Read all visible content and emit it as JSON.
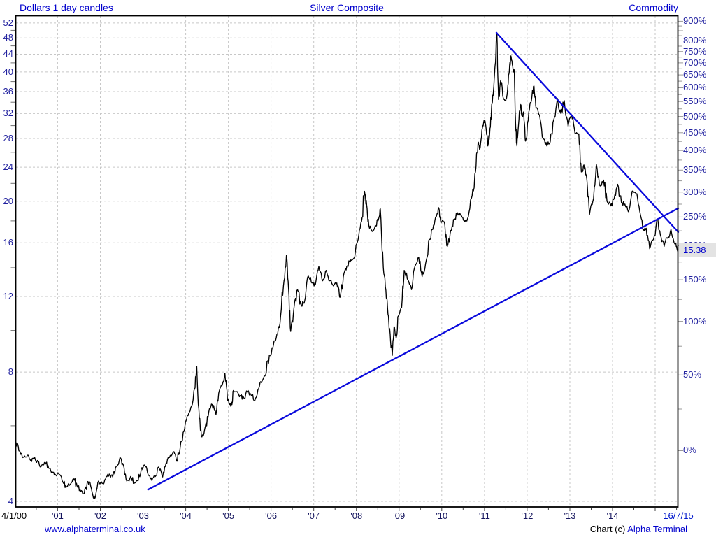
{
  "header": {
    "left": "Dollars 1 day candles",
    "center": "Silver Composite",
    "right": "Commodity"
  },
  "footer": {
    "site": "www.alphaterminal.co.uk",
    "credit_prefix": "Chart (c) ",
    "credit_brand": "Alpha Terminal"
  },
  "colors": {
    "grid": "#c7c7c7",
    "border": "#000000",
    "price_line": "#000000",
    "trendline": "#0a0adc",
    "title_text": "#0000cd",
    "axis_text": "#1f1f9e",
    "x_axis_text": "#15155e",
    "first_date_text": "#000000",
    "last_date_text": "#0018cc",
    "badge_bg": "#e3e3e3",
    "badge_text": "#0000cd",
    "left_tick": "#707070",
    "right_tick": "#9a9a9a",
    "x_tick": "#444444"
  },
  "chart_data": {
    "type": "line",
    "title": "Silver Composite",
    "category": "Commodity",
    "unit": "Dollars",
    "interval": "1 day candles",
    "grid": true,
    "legend": false,
    "last_price": 15.38,
    "last_price_label": "15.38",
    "left_axis": {
      "scale": "log",
      "range": [
        3.882,
        54.17
      ],
      "labels": [
        4,
        8,
        12,
        16,
        20,
        24,
        28,
        32,
        36,
        40,
        44,
        48,
        52
      ],
      "minor_ticks": [
        6,
        10,
        14,
        18,
        22,
        26,
        30,
        34,
        38,
        42,
        46,
        50
      ]
    },
    "right_axis": {
      "scale": "log-percent-change",
      "base_price": 5.25,
      "label_pcts": [
        900,
        800,
        750,
        700,
        650,
        600,
        550,
        500,
        450,
        400,
        350,
        300,
        250,
        200,
        150,
        100,
        50,
        0
      ],
      "tick_step_pct": 25,
      "tick_max_pct": 900
    },
    "x_axis": {
      "start": 2000.01,
      "end": 2015.54,
      "first_label": "4/1/00",
      "years": [
        2001,
        2002,
        2003,
        2004,
        2005,
        2006,
        2007,
        2008,
        2009,
        2010,
        2011,
        2012,
        2013,
        2014
      ],
      "year_labels": [
        "'01",
        "'02",
        "'03",
        "'04",
        "'05",
        "'06",
        "'07",
        "'08",
        "'09",
        "'10",
        "'11",
        "'12",
        "'13",
        "'14"
      ],
      "gridline_years": [
        2001,
        2002,
        2003,
        2004,
        2005,
        2006,
        2007,
        2008,
        2009,
        2010,
        2011,
        2012,
        2013,
        2014,
        2015
      ],
      "last_label": "16/7/15",
      "minor_tick_interval_years": 0.5
    },
    "trendlines": [
      {
        "name": "rising-support",
        "from_t": 2003.12,
        "from_price": 4.26,
        "to_t": 2015.54,
        "to_price": 19.25
      },
      {
        "name": "falling-resistance",
        "from_t": 2011.28,
        "from_price": 49.35,
        "to_t": 2015.54,
        "to_price": 16.95
      }
    ],
    "series": {
      "name": "Silver Composite",
      "points": [
        [
          2000.01,
          5.3
        ],
        [
          2000.05,
          5.48
        ],
        [
          2000.12,
          5.22
        ],
        [
          2000.21,
          5.06
        ],
        [
          2000.29,
          5.12
        ],
        [
          2000.37,
          4.97
        ],
        [
          2000.46,
          5.07
        ],
        [
          2000.54,
          4.95
        ],
        [
          2000.62,
          4.83
        ],
        [
          2000.71,
          4.93
        ],
        [
          2000.79,
          4.78
        ],
        [
          2000.87,
          4.68
        ],
        [
          2000.96,
          4.6
        ],
        [
          2001.04,
          4.62
        ],
        [
          2001.12,
          4.44
        ],
        [
          2001.21,
          4.32
        ],
        [
          2001.29,
          4.37
        ],
        [
          2001.37,
          4.52
        ],
        [
          2001.46,
          4.33
        ],
        [
          2001.54,
          4.22
        ],
        [
          2001.62,
          4.17
        ],
        [
          2001.71,
          4.45
        ],
        [
          2001.79,
          4.28
        ],
        [
          2001.87,
          4.06
        ],
        [
          2001.96,
          4.46
        ],
        [
          2002.04,
          4.41
        ],
        [
          2002.12,
          4.5
        ],
        [
          2002.21,
          4.63
        ],
        [
          2002.29,
          4.56
        ],
        [
          2002.37,
          4.82
        ],
        [
          2002.46,
          5.06
        ],
        [
          2002.54,
          4.86
        ],
        [
          2002.62,
          4.46
        ],
        [
          2002.71,
          4.57
        ],
        [
          2002.79,
          4.41
        ],
        [
          2002.87,
          4.47
        ],
        [
          2002.96,
          4.76
        ],
        [
          2003.04,
          4.86
        ],
        [
          2003.12,
          4.62
        ],
        [
          2003.21,
          4.47
        ],
        [
          2003.29,
          4.57
        ],
        [
          2003.37,
          4.81
        ],
        [
          2003.46,
          4.56
        ],
        [
          2003.54,
          4.91
        ],
        [
          2003.62,
          5.06
        ],
        [
          2003.71,
          5.21
        ],
        [
          2003.79,
          4.96
        ],
        [
          2003.87,
          5.32
        ],
        [
          2003.96,
          5.82
        ],
        [
          2004.04,
          6.35
        ],
        [
          2004.12,
          6.62
        ],
        [
          2004.21,
          7.32
        ],
        [
          2004.26,
          8.25
        ],
        [
          2004.32,
          6.25
        ],
        [
          2004.38,
          5.65
        ],
        [
          2004.46,
          5.97
        ],
        [
          2004.54,
          6.45
        ],
        [
          2004.62,
          6.72
        ],
        [
          2004.71,
          6.37
        ],
        [
          2004.79,
          7.25
        ],
        [
          2004.87,
          7.55
        ],
        [
          2004.92,
          7.95
        ],
        [
          2004.98,
          6.88
        ],
        [
          2005.06,
          6.65
        ],
        [
          2005.12,
          7.25
        ],
        [
          2005.21,
          7.2
        ],
        [
          2005.29,
          7.05
        ],
        [
          2005.37,
          6.95
        ],
        [
          2005.46,
          7.25
        ],
        [
          2005.54,
          7.05
        ],
        [
          2005.62,
          6.87
        ],
        [
          2005.71,
          7.32
        ],
        [
          2005.79,
          7.62
        ],
        [
          2005.87,
          7.87
        ],
        [
          2005.96,
          8.75
        ],
        [
          2006.04,
          9.1
        ],
        [
          2006.12,
          9.6
        ],
        [
          2006.21,
          10.4
        ],
        [
          2006.29,
          12.7
        ],
        [
          2006.36,
          14.95
        ],
        [
          2006.41,
          12.5
        ],
        [
          2006.46,
          9.95
        ],
        [
          2006.54,
          11.35
        ],
        [
          2006.62,
          12.45
        ],
        [
          2006.71,
          11.4
        ],
        [
          2006.79,
          11.75
        ],
        [
          2006.87,
          13.4
        ],
        [
          2006.96,
          12.9
        ],
        [
          2007.04,
          12.8
        ],
        [
          2007.12,
          14.1
        ],
        [
          2007.21,
          13.05
        ],
        [
          2007.29,
          13.8
        ],
        [
          2007.37,
          13.05
        ],
        [
          2007.46,
          12.7
        ],
        [
          2007.54,
          12.9
        ],
        [
          2007.62,
          11.95
        ],
        [
          2007.71,
          13.6
        ],
        [
          2007.79,
          14.15
        ],
        [
          2007.87,
          14.6
        ],
        [
          2007.96,
          14.8
        ],
        [
          2008.04,
          16.3
        ],
        [
          2008.12,
          17.95
        ],
        [
          2008.19,
          21.1
        ],
        [
          2008.24,
          19.6
        ],
        [
          2008.29,
          17.6
        ],
        [
          2008.37,
          17.0
        ],
        [
          2008.46,
          17.5
        ],
        [
          2008.52,
          18.2
        ],
        [
          2008.56,
          19.2
        ],
        [
          2008.63,
          14.0
        ],
        [
          2008.69,
          12.4
        ],
        [
          2008.74,
          10.9
        ],
        [
          2008.79,
          9.8
        ],
        [
          2008.84,
          8.75
        ],
        [
          2008.88,
          10.2
        ],
        [
          2008.93,
          9.6
        ],
        [
          2008.98,
          10.8
        ],
        [
          2009.06,
          11.3
        ],
        [
          2009.12,
          13.8
        ],
        [
          2009.21,
          13.1
        ],
        [
          2009.29,
          12.45
        ],
        [
          2009.37,
          14.1
        ],
        [
          2009.46,
          14.8
        ],
        [
          2009.54,
          13.35
        ],
        [
          2009.62,
          14.3
        ],
        [
          2009.71,
          16.3
        ],
        [
          2009.79,
          17.2
        ],
        [
          2009.87,
          18.4
        ],
        [
          2009.93,
          19.3
        ],
        [
          2009.98,
          17.8
        ],
        [
          2010.06,
          17.9
        ],
        [
          2010.13,
          15.7
        ],
        [
          2010.21,
          17.1
        ],
        [
          2010.29,
          18.1
        ],
        [
          2010.37,
          18.8
        ],
        [
          2010.46,
          18.5
        ],
        [
          2010.54,
          17.9
        ],
        [
          2010.62,
          18.4
        ],
        [
          2010.71,
          20.6
        ],
        [
          2010.79,
          23.4
        ],
        [
          2010.85,
          27.4
        ],
        [
          2010.89,
          26.4
        ],
        [
          2010.94,
          29.3
        ],
        [
          2010.99,
          30.9
        ],
        [
          2011.03,
          30.0
        ],
        [
          2011.08,
          26.9
        ],
        [
          2011.13,
          29.6
        ],
        [
          2011.17,
          33.6
        ],
        [
          2011.21,
          36.2
        ],
        [
          2011.25,
          41.5
        ],
        [
          2011.29,
          49.3
        ],
        [
          2011.33,
          34.5
        ],
        [
          2011.38,
          38.3
        ],
        [
          2011.44,
          34.8
        ],
        [
          2011.5,
          34.3
        ],
        [
          2011.54,
          36.2
        ],
        [
          2011.58,
          40.0
        ],
        [
          2011.62,
          43.6
        ],
        [
          2011.66,
          41.3
        ],
        [
          2011.7,
          40.0
        ],
        [
          2011.73,
          30.2
        ],
        [
          2011.76,
          26.9
        ],
        [
          2011.8,
          30.3
        ],
        [
          2011.84,
          33.6
        ],
        [
          2011.88,
          31.6
        ],
        [
          2011.92,
          32.3
        ],
        [
          2011.96,
          27.6
        ],
        [
          2012.04,
          32.3
        ],
        [
          2012.1,
          34.3
        ],
        [
          2012.16,
          37.1
        ],
        [
          2012.21,
          32.9
        ],
        [
          2012.29,
          31.7
        ],
        [
          2012.37,
          28.1
        ],
        [
          2012.46,
          26.9
        ],
        [
          2012.54,
          27.5
        ],
        [
          2012.62,
          30.9
        ],
        [
          2012.71,
          34.7
        ],
        [
          2012.79,
          32.0
        ],
        [
          2012.87,
          34.3
        ],
        [
          2012.96,
          29.9
        ],
        [
          2013.04,
          31.7
        ],
        [
          2013.12,
          28.8
        ],
        [
          2013.21,
          28.7
        ],
        [
          2013.27,
          23.4
        ],
        [
          2013.33,
          24.3
        ],
        [
          2013.4,
          22.4
        ],
        [
          2013.46,
          18.6
        ],
        [
          2013.54,
          20.0
        ],
        [
          2013.62,
          24.4
        ],
        [
          2013.71,
          21.7
        ],
        [
          2013.79,
          22.4
        ],
        [
          2013.87,
          20.0
        ],
        [
          2013.96,
          19.5
        ],
        [
          2014.04,
          20.3
        ],
        [
          2014.12,
          21.9
        ],
        [
          2014.21,
          19.8
        ],
        [
          2014.29,
          19.7
        ],
        [
          2014.37,
          18.9
        ],
        [
          2014.46,
          21.1
        ],
        [
          2014.54,
          20.9
        ],
        [
          2014.62,
          19.5
        ],
        [
          2014.71,
          17.2
        ],
        [
          2014.79,
          17.3
        ],
        [
          2014.87,
          15.5
        ],
        [
          2014.96,
          16.3
        ],
        [
          2015.06,
          18.2
        ],
        [
          2015.12,
          16.7
        ],
        [
          2015.21,
          15.7
        ],
        [
          2015.29,
          16.4
        ],
        [
          2015.37,
          17.2
        ],
        [
          2015.46,
          15.9
        ],
        [
          2015.5,
          15.7
        ],
        [
          2015.54,
          15.38
        ]
      ]
    }
  }
}
